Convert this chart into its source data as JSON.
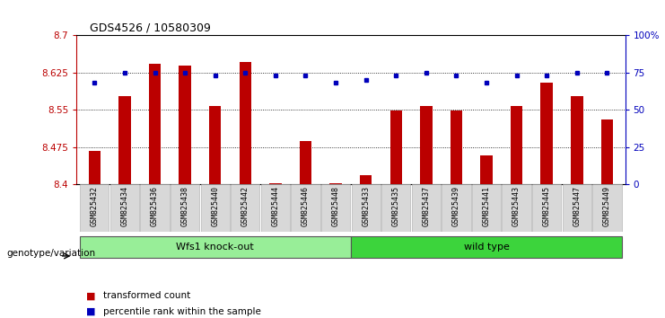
{
  "title": "GDS4526 / 10580309",
  "samples": [
    "GSM825432",
    "GSM825434",
    "GSM825436",
    "GSM825438",
    "GSM825440",
    "GSM825442",
    "GSM825444",
    "GSM825446",
    "GSM825448",
    "GSM825433",
    "GSM825435",
    "GSM825437",
    "GSM825439",
    "GSM825441",
    "GSM825443",
    "GSM825445",
    "GSM825447",
    "GSM825449"
  ],
  "bar_values": [
    8.468,
    8.578,
    8.643,
    8.638,
    8.558,
    8.645,
    8.403,
    8.487,
    8.403,
    8.418,
    8.548,
    8.558,
    8.548,
    8.458,
    8.558,
    8.605,
    8.578,
    8.53
  ],
  "percentile_values": [
    68,
    75,
    75,
    75,
    73,
    75,
    73,
    73,
    68,
    70,
    73,
    75,
    73,
    68,
    73,
    73,
    75,
    75
  ],
  "group1_label": "Wfs1 knock-out",
  "group1_count": 9,
  "group2_label": "wild type",
  "group2_count": 9,
  "group1_color": "#98EE98",
  "group2_color": "#3CD43C",
  "bar_color": "#BB0000",
  "percentile_color": "#0000BB",
  "ylim_left": [
    8.4,
    8.7
  ],
  "ylim_right": [
    0,
    100
  ],
  "yticks_left": [
    8.4,
    8.475,
    8.55,
    8.625,
    8.7
  ],
  "yticks_right": [
    0,
    25,
    50,
    75,
    100
  ],
  "ytick_labels_right": [
    "0",
    "25",
    "50",
    "75",
    "100%"
  ],
  "background_color": "#ffffff",
  "grid_color": "#000000",
  "genotype_label": "genotype/variation",
  "legend_items": [
    "transformed count",
    "percentile rank within the sample"
  ],
  "xtickbox_color": "#D8D8D8"
}
